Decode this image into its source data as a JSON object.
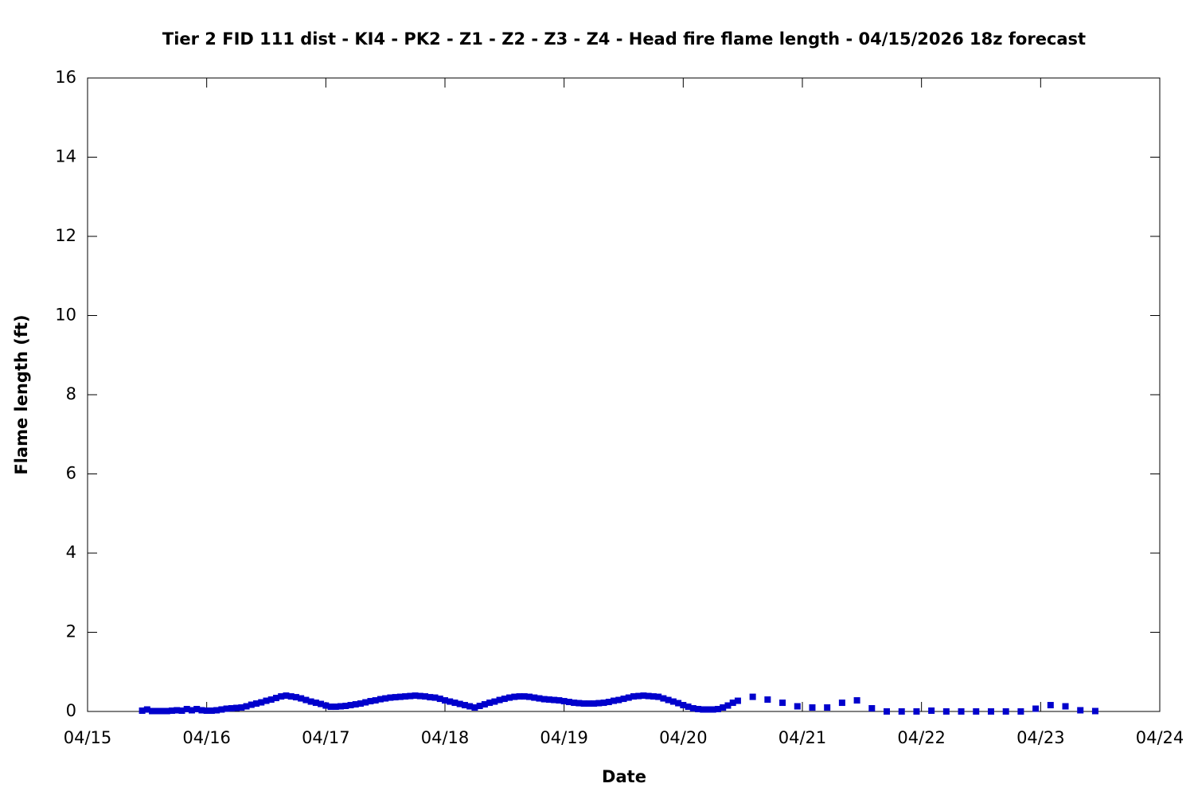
{
  "chart_data": {
    "type": "scatter",
    "title": "Tier 2 FID 111 dist - KI4 - PK2 - Z1 - Z2 - Z3 - Z4 - Head fire flame length - 04/15/2026 18z forecast",
    "x_label": "Date",
    "y_label": "Flame length (ft)",
    "x": [
      11,
      12,
      13,
      14,
      15,
      16,
      17,
      18,
      19,
      20,
      21,
      22,
      23,
      24,
      25,
      26,
      27,
      28,
      29,
      30,
      31,
      32,
      33,
      34,
      35,
      36,
      37,
      38,
      39,
      40,
      41,
      42,
      43,
      44,
      45,
      46,
      47,
      48,
      49,
      50,
      51,
      52,
      53,
      54,
      55,
      56,
      57,
      58,
      59,
      60,
      61,
      62,
      63,
      64,
      65,
      66,
      67,
      68,
      69,
      70,
      71,
      72,
      73,
      74,
      75,
      76,
      77,
      78,
      79,
      80,
      81,
      82,
      83,
      84,
      85,
      86,
      87,
      88,
      89,
      90,
      91,
      92,
      93,
      94,
      95,
      96,
      97,
      98,
      99,
      100,
      101,
      102,
      103,
      104,
      105,
      106,
      107,
      108,
      109,
      110,
      111,
      112,
      113,
      114,
      115,
      116,
      117,
      118,
      119,
      120,
      121,
      122,
      123,
      124,
      125,
      126,
      127,
      128,
      129,
      130,
      131,
      134,
      137,
      140,
      143,
      146,
      149,
      152,
      155,
      158,
      161,
      164,
      167,
      170,
      173,
      176,
      179,
      182,
      185,
      188,
      191,
      194,
      197,
      200,
      203
    ],
    "series": [
      {
        "color": "#0000cc",
        "values": [
          0.02,
          0.05,
          0.01,
          0.01,
          0.01,
          0.01,
          0.02,
          0.03,
          0.02,
          0.06,
          0.03,
          0.06,
          0.03,
          0.02,
          0.02,
          0.03,
          0.05,
          0.07,
          0.08,
          0.09,
          0.1,
          0.13,
          0.17,
          0.2,
          0.23,
          0.27,
          0.3,
          0.34,
          0.38,
          0.4,
          0.38,
          0.36,
          0.33,
          0.29,
          0.25,
          0.22,
          0.19,
          0.15,
          0.12,
          0.12,
          0.13,
          0.14,
          0.16,
          0.18,
          0.2,
          0.23,
          0.26,
          0.28,
          0.31,
          0.33,
          0.35,
          0.36,
          0.37,
          0.38,
          0.39,
          0.4,
          0.39,
          0.38,
          0.36,
          0.35,
          0.32,
          0.28,
          0.25,
          0.22,
          0.19,
          0.16,
          0.13,
          0.1,
          0.14,
          0.18,
          0.22,
          0.25,
          0.29,
          0.32,
          0.35,
          0.37,
          0.38,
          0.38,
          0.37,
          0.35,
          0.33,
          0.31,
          0.3,
          0.29,
          0.28,
          0.26,
          0.24,
          0.22,
          0.21,
          0.2,
          0.2,
          0.2,
          0.21,
          0.22,
          0.24,
          0.27,
          0.29,
          0.32,
          0.35,
          0.38,
          0.39,
          0.4,
          0.39,
          0.38,
          0.37,
          0.33,
          0.29,
          0.25,
          0.21,
          0.16,
          0.12,
          0.08,
          0.06,
          0.05,
          0.05,
          0.05,
          0.06,
          0.1,
          0.15,
          0.22,
          0.27,
          0.37,
          0.3,
          0.22,
          0.13,
          0.1,
          0.1,
          0.22,
          0.28,
          0.08,
          0,
          0,
          0,
          0.02,
          0,
          0,
          0,
          0,
          0,
          0,
          0.07,
          0.16,
          0.13,
          0.03,
          0.01
        ]
      }
    ],
    "xlim": [
      0,
      216
    ],
    "xticks": [
      {
        "value": 0,
        "label": "04/15"
      },
      {
        "value": 24,
        "label": "04/16"
      },
      {
        "value": 48,
        "label": "04/17"
      },
      {
        "value": 72,
        "label": "04/18"
      },
      {
        "value": 96,
        "label": "04/19"
      },
      {
        "value": 120,
        "label": "04/20"
      },
      {
        "value": 144,
        "label": "04/21"
      },
      {
        "value": 168,
        "label": "04/22"
      },
      {
        "value": 192,
        "label": "04/23"
      },
      {
        "value": 216,
        "label": "04/24"
      }
    ],
    "ylim": [
      0,
      16
    ],
    "yticks": [
      0,
      2,
      4,
      6,
      8,
      10,
      12,
      14,
      16
    ],
    "grid": false
  }
}
